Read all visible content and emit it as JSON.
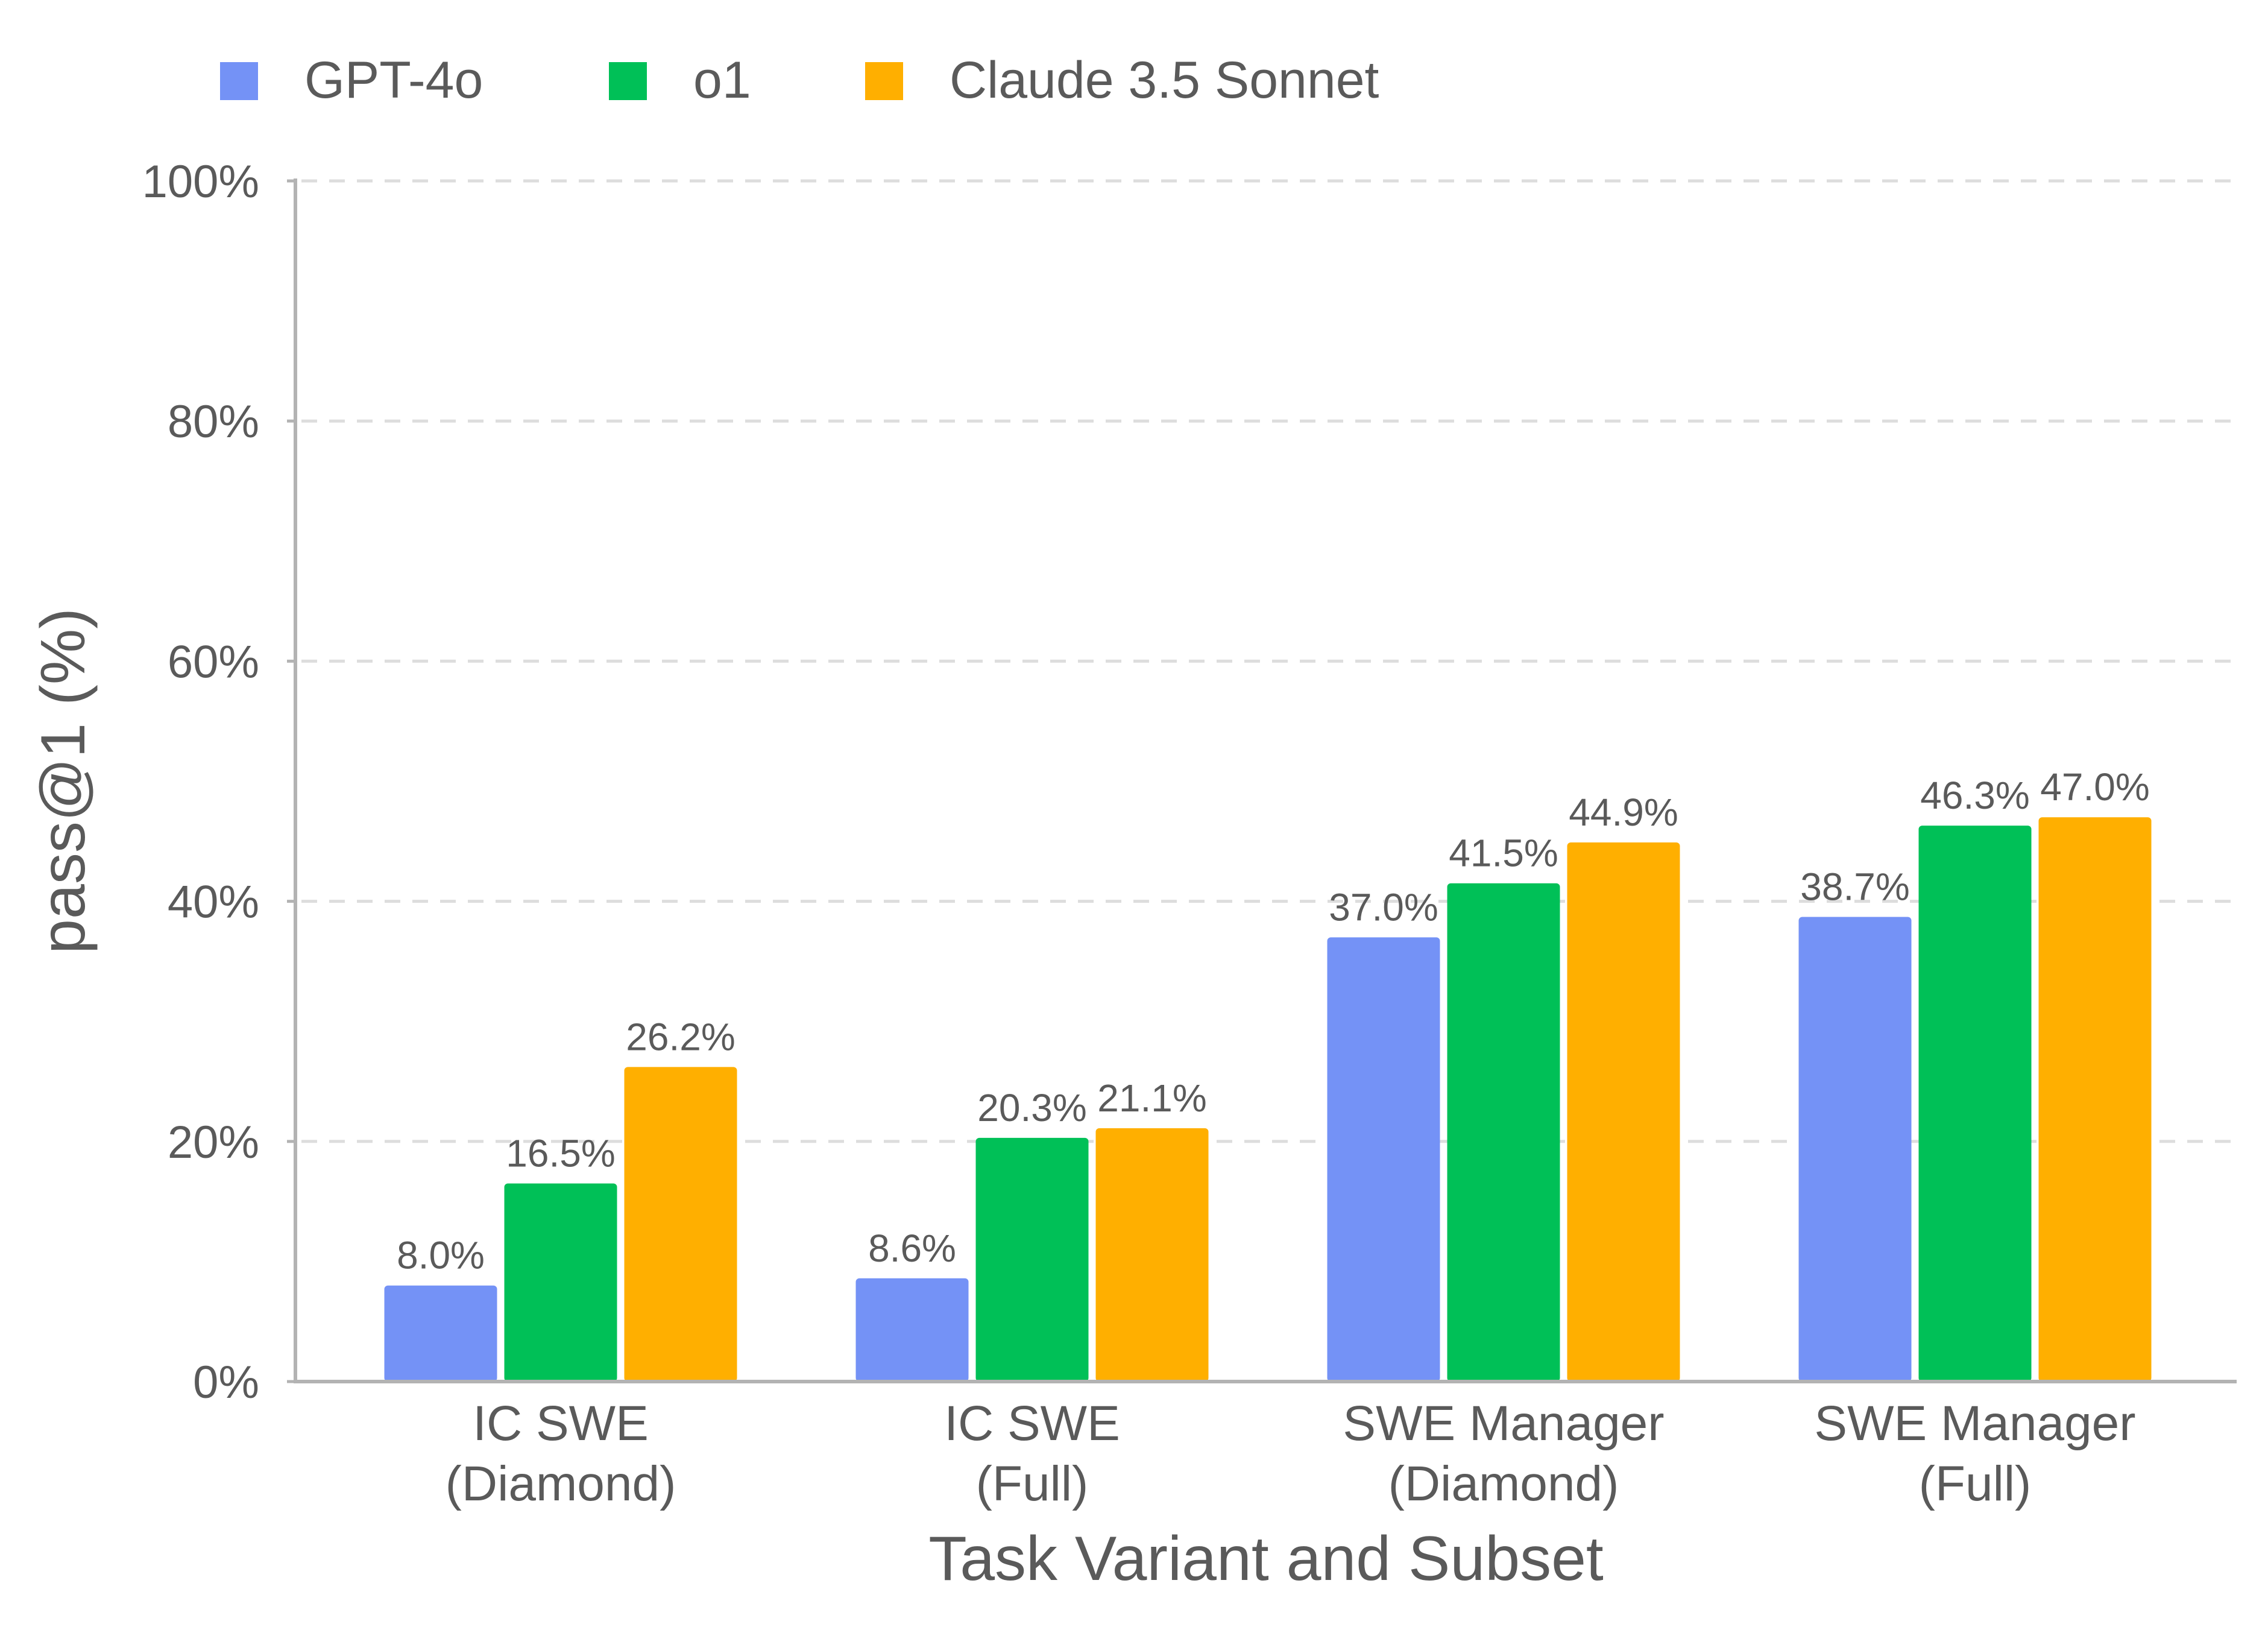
{
  "chart_data": {
    "type": "bar",
    "title": "",
    "xlabel": "Task Variant and Subset",
    "ylabel": "pass@1 (%)",
    "ylim": [
      0,
      100
    ],
    "yticks": [
      0,
      20,
      40,
      60,
      80,
      100
    ],
    "ytick_labels": [
      "0%",
      "20%",
      "40%",
      "60%",
      "80%",
      "100%"
    ],
    "grid": true,
    "legend_position": "top-left",
    "categories": [
      {
        "line1": "IC SWE",
        "line2": "(Diamond)"
      },
      {
        "line1": "IC SWE",
        "line2": "(Full)"
      },
      {
        "line1": "SWE Manager",
        "line2": "(Diamond)"
      },
      {
        "line1": "SWE Manager",
        "line2": "(Full)"
      }
    ],
    "series": [
      {
        "name": "GPT-4o",
        "color": "#7492F6",
        "values": [
          8.0,
          8.6,
          37.0,
          38.7
        ],
        "labels": [
          "8.0%",
          "8.6%",
          "37.0%",
          "38.7%"
        ]
      },
      {
        "name": "o1",
        "color": "#00C057",
        "values": [
          16.5,
          20.3,
          41.5,
          46.3
        ],
        "labels": [
          "16.5%",
          "20.3%",
          "41.5%",
          "46.3%"
        ]
      },
      {
        "name": "Claude 3.5 Sonnet",
        "color": "#FFAF00",
        "values": [
          26.2,
          21.1,
          44.9,
          47.0
        ],
        "labels": [
          "26.2%",
          "21.1%",
          "44.9%",
          "47.0%"
        ]
      }
    ]
  }
}
